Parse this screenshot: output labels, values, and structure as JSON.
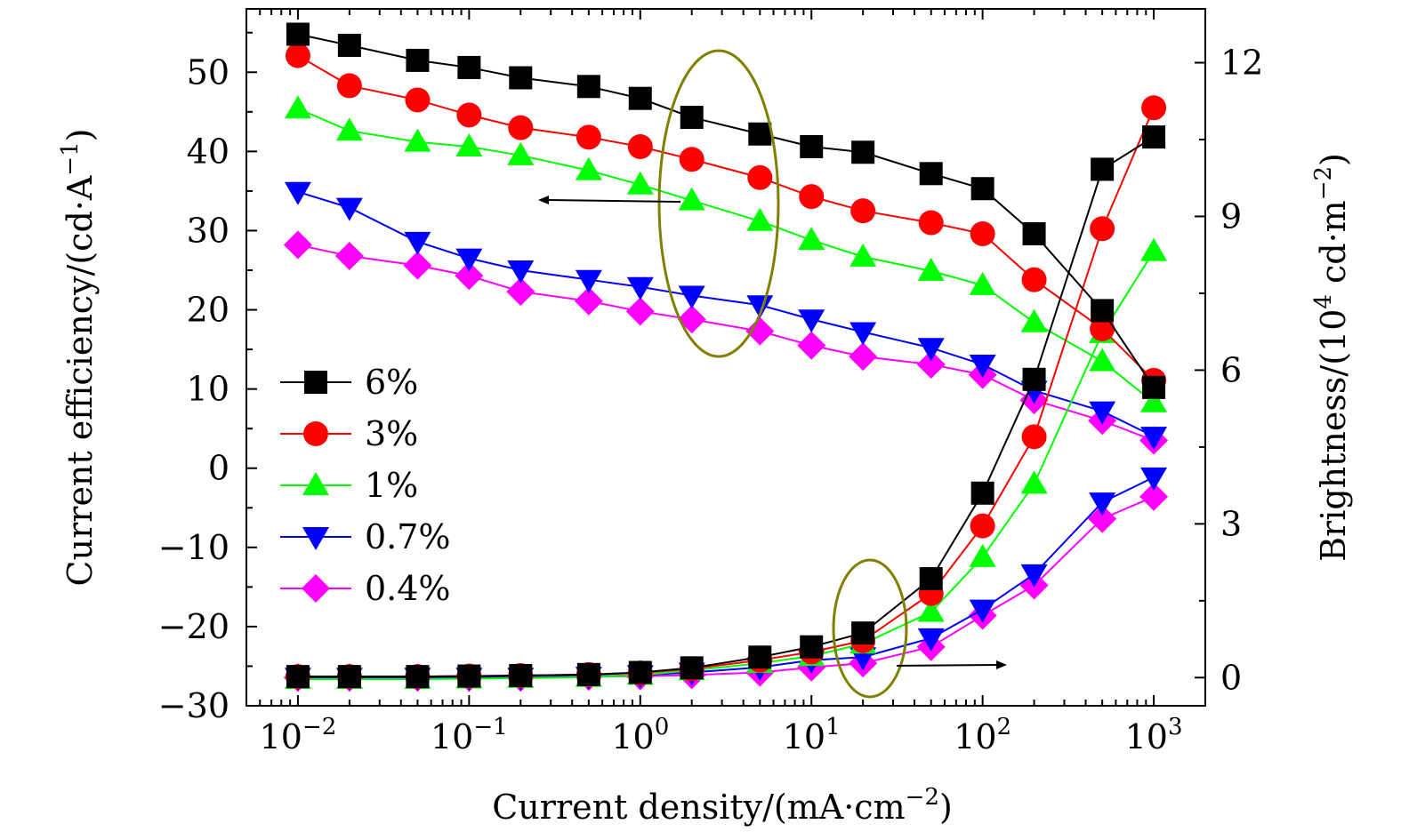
{
  "chart_data": {
    "type": "line",
    "xscale": "log",
    "xlabel": "Current density/(mA·cm",
    "xlabel_sup": "−2",
    "xlabel_end": ")",
    "ylabel": "Current efficiency/(cd·A",
    "ylabel_sup": "−1",
    "ylabel_end": ")",
    "y2label": "Brightness/(10",
    "y2label_sup1": "4",
    "y2label_mid": " cd·m",
    "y2label_sup2": "−2",
    "y2label_end": ")",
    "xlim": [
      0.005,
      2000
    ],
    "ylim": [
      -30,
      58
    ],
    "y2lim": [
      -0.55,
      13.05
    ],
    "x_ticks": [
      {
        "value": 0.01,
        "base": "10",
        "exp": "−2"
      },
      {
        "value": 0.1,
        "base": "10",
        "exp": "−1"
      },
      {
        "value": 1,
        "base": "10",
        "exp": "0"
      },
      {
        "value": 10,
        "base": "10",
        "exp": "1"
      },
      {
        "value": 100,
        "base": "10",
        "exp": "2"
      },
      {
        "value": 1000,
        "base": "10",
        "exp": "3"
      }
    ],
    "y_ticks": [
      {
        "value": 50,
        "label": "50"
      },
      {
        "value": 40,
        "label": "40"
      },
      {
        "value": 30,
        "label": "30"
      },
      {
        "value": 20,
        "label": "20"
      },
      {
        "value": 10,
        "label": "10"
      },
      {
        "value": 0,
        "label": "0"
      },
      {
        "value": -10,
        "label": "−10"
      },
      {
        "value": -20,
        "label": "−20"
      },
      {
        "value": -30,
        "label": "−30"
      }
    ],
    "y2_ticks": [
      {
        "value": 12,
        "label": "12"
      },
      {
        "value": 9,
        "label": "9"
      },
      {
        "value": 6,
        "label": "6"
      },
      {
        "value": 3,
        "label": "3"
      },
      {
        "value": 0,
        "label": "0"
      }
    ],
    "x": [
      0.01,
      0.02,
      0.05,
      0.1,
      0.2,
      0.5,
      1,
      2,
      5,
      10,
      20,
      50,
      100,
      200,
      500,
      1000
    ],
    "legend_position": "left-middle",
    "series": [
      {
        "name": "6%",
        "color": "#000000",
        "marker": "square",
        "efficiency": [
          54.8,
          53.4,
          51.5,
          50.6,
          49.3,
          48.2,
          46.7,
          44.3,
          42.2,
          40.6,
          39.9,
          37.2,
          35.3,
          29.6,
          19.9,
          10.2
        ],
        "brightness": [
          0.02,
          0.02,
          0.02,
          0.03,
          0.04,
          0.06,
          0.1,
          0.19,
          0.4,
          0.6,
          0.87,
          1.93,
          3.6,
          5.82,
          9.92,
          10.55
        ]
      },
      {
        "name": "3%",
        "color": "#ff0000",
        "marker": "circle",
        "efficiency": [
          52.1,
          48.3,
          46.5,
          44.6,
          43.0,
          41.8,
          40.6,
          39.0,
          36.7,
          34.3,
          32.5,
          31.0,
          29.6,
          23.8,
          17.6,
          11.1
        ],
        "brightness": [
          0.02,
          0.02,
          0.02,
          0.03,
          0.04,
          0.06,
          0.09,
          0.17,
          0.34,
          0.5,
          0.72,
          1.64,
          2.96,
          4.7,
          8.76,
          11.12
        ]
      },
      {
        "name": "1%",
        "color": "#00ff00",
        "marker": "triangle-up",
        "efficiency": [
          45.4,
          42.6,
          41.2,
          40.6,
          39.5,
          37.6,
          35.8,
          33.8,
          31.2,
          28.8,
          26.7,
          24.9,
          23.1,
          18.4,
          13.5,
          8.3
        ],
        "brightness": [
          -0.03,
          -0.03,
          -0.03,
          -0.02,
          -0.01,
          0.01,
          0.05,
          0.14,
          0.28,
          0.42,
          0.66,
          1.28,
          2.35,
          3.78,
          6.72,
          8.32
        ]
      },
      {
        "name": "0.7%",
        "color": "#0000ff",
        "marker": "triangle-down",
        "efficiency": [
          34.9,
          32.9,
          28.6,
          26.5,
          25.0,
          23.8,
          22.9,
          21.8,
          20.6,
          18.8,
          17.2,
          15.2,
          13.1,
          9.8,
          7.2,
          4.0
        ],
        "brightness": [
          0.0,
          0.0,
          0.0,
          0.0,
          0.0,
          0.02,
          0.05,
          0.1,
          0.2,
          0.34,
          0.4,
          0.77,
          1.33,
          2.02,
          3.42,
          3.91
        ]
      },
      {
        "name": "0.4%",
        "color": "#ff00ff",
        "marker": "diamond",
        "efficiency": [
          28.2,
          26.8,
          25.6,
          24.3,
          22.3,
          21.1,
          19.8,
          18.8,
          17.3,
          15.5,
          14.1,
          13.1,
          11.8,
          8.6,
          6.0,
          3.5
        ],
        "brightness": [
          0.0,
          0.0,
          0.0,
          0.0,
          0.0,
          0.02,
          0.03,
          0.05,
          0.1,
          0.2,
          0.28,
          0.6,
          1.21,
          1.8,
          3.1,
          3.53
        ]
      }
    ]
  }
}
